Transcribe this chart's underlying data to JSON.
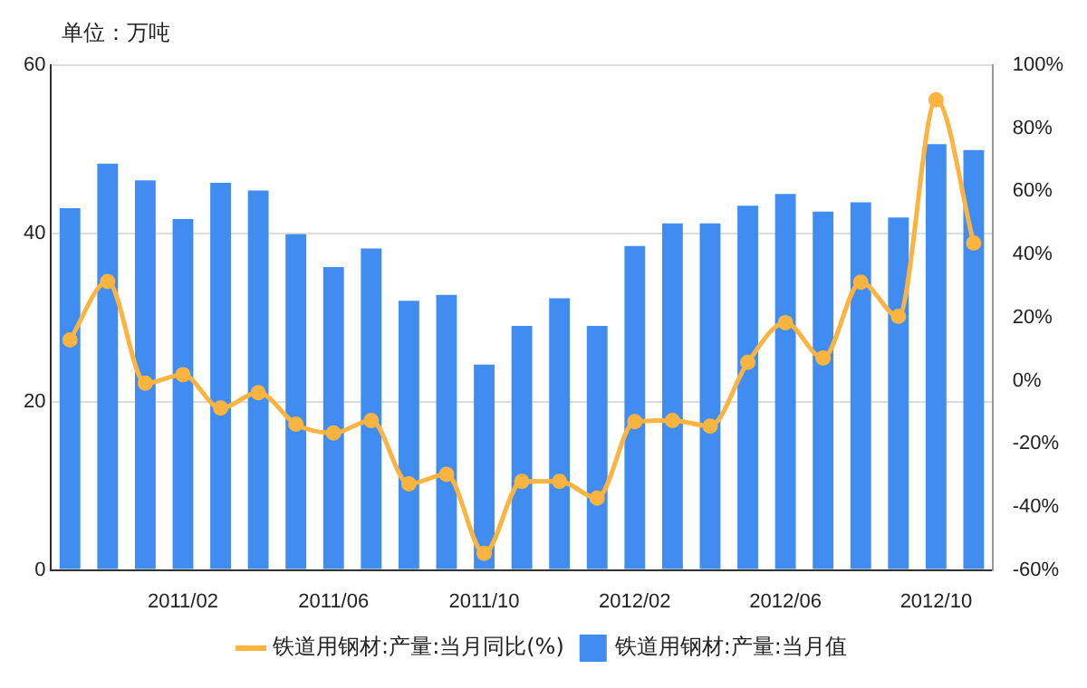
{
  "chart_data": {
    "type": "bar",
    "ylabel": "单位：万吨",
    "categories": [
      null,
      null,
      null,
      "2011/02",
      null,
      null,
      null,
      "2011/06",
      null,
      null,
      null,
      "2011/10",
      null,
      null,
      null,
      "2012/02",
      null,
      null,
      null,
      "2012/06",
      null,
      null,
      null,
      "2012/10",
      null
    ],
    "series": [
      {
        "name": "铁道用钢材:产量:当月值",
        "color": "#418cf0",
        "values": [
          43.0,
          48.3,
          46.3,
          41.7,
          46.0,
          45.1,
          39.9,
          36.0,
          38.2,
          32.0,
          32.7,
          24.4,
          29.0,
          32.3,
          29.0,
          38.5,
          41.2,
          41.2,
          43.3,
          44.7,
          42.6,
          43.7,
          41.9,
          50.6,
          49.9
        ]
      },
      {
        "name": "铁道用钢材:产量:当月同比(%)",
        "type": "line",
        "axis": "y2",
        "color": "#fcb441",
        "marker": "circle",
        "line_style": "solid",
        "values": [
          12.9,
          31.4,
          -0.8,
          1.9,
          -8.7,
          -3.8,
          -13.8,
          -16.6,
          -12.6,
          -32.7,
          -29.7,
          -54.7,
          -31.9,
          -31.9,
          -37.2,
          -13.0,
          -12.6,
          -14.4,
          5.8,
          18.4,
          7.2,
          31.2,
          20.4,
          89.0,
          43.6
        ]
      }
    ],
    "ylim": [
      0,
      60
    ],
    "yticks": [
      0,
      20,
      40,
      60
    ],
    "y2lim": [
      -60,
      100
    ],
    "y2ticks": [
      {
        "value": -60,
        "label": "-60%"
      },
      {
        "value": -40,
        "label": "-40%"
      },
      {
        "value": -20,
        "label": "-20%"
      },
      {
        "value": 0,
        "label": "0%"
      },
      {
        "value": 20,
        "label": "20%"
      },
      {
        "value": 40,
        "label": "40%"
      },
      {
        "value": 60,
        "label": "60%"
      },
      {
        "value": 80,
        "label": "80%"
      },
      {
        "value": 100,
        "label": "100%"
      }
    ],
    "grid": "y",
    "legend": "bottom"
  }
}
